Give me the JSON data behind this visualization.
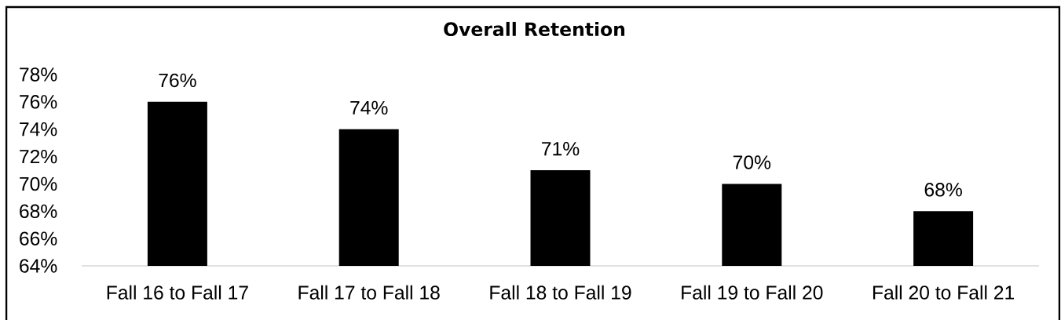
{
  "chart_data": {
    "type": "bar",
    "title": "Overall Retention",
    "categories": [
      "Fall 16 to Fall 17",
      "Fall 17 to Fall 18",
      "Fall 18 to Fall 19",
      "Fall 19 to Fall 20",
      "Fall 20 to Fall 21"
    ],
    "values": [
      76,
      74,
      71,
      70,
      68
    ],
    "value_labels": [
      "76%",
      "74%",
      "71%",
      "70%",
      "68%"
    ],
    "color": "#000000",
    "ylim": [
      64,
      78
    ],
    "yticks": [
      {
        "value": 64,
        "label": "64%"
      },
      {
        "value": 66,
        "label": "66%"
      },
      {
        "value": 68,
        "label": "68%"
      },
      {
        "value": 70,
        "label": "70%"
      },
      {
        "value": 72,
        "label": "72%"
      },
      {
        "value": 74,
        "label": "74%"
      },
      {
        "value": 76,
        "label": "76%"
      },
      {
        "value": 78,
        "label": "78%"
      }
    ]
  }
}
